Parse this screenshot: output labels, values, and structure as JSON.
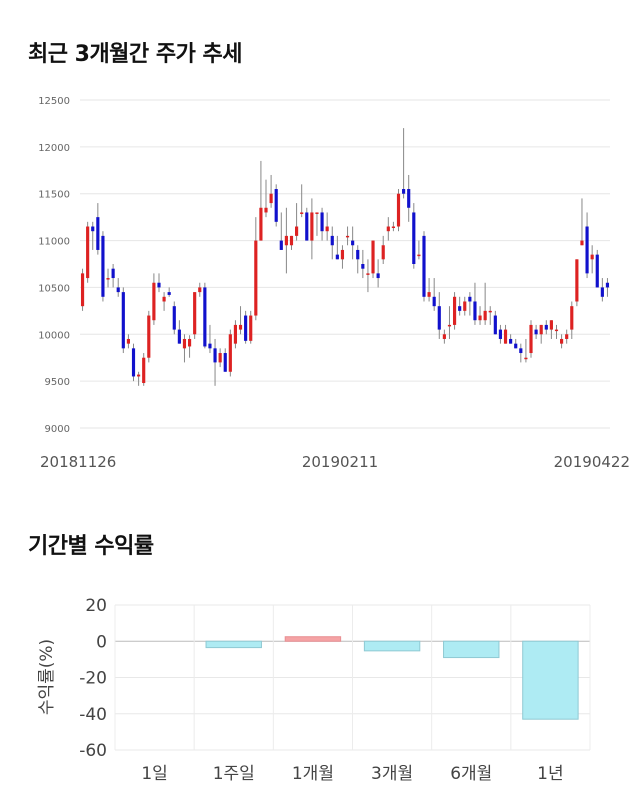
{
  "sections": {
    "price_title": "최근 3개월간 주가 추세",
    "returns_title": "기간별 수익률"
  },
  "chart_data": [
    {
      "type": "candlestick",
      "title": "최근 3개월간 주가 추세",
      "ylim": [
        9000,
        12500
      ],
      "yticks": [
        9000,
        9500,
        10000,
        10500,
        11000,
        11500,
        12000,
        12500
      ],
      "x_labels": [
        "20181126",
        "20190211",
        "20190422"
      ],
      "grid": true,
      "colors": {
        "up": "#dd2222",
        "down": "#1111cc",
        "wick": "#888888"
      },
      "candles": [
        [
          10300,
          10700,
          10250,
          10650
        ],
        [
          10600,
          11200,
          10550,
          11150
        ],
        [
          11150,
          11200,
          10900,
          11100
        ],
        [
          11250,
          11400,
          10850,
          10900
        ],
        [
          11050,
          11100,
          10350,
          10400
        ],
        [
          10600,
          10700,
          10500,
          10600
        ],
        [
          10700,
          10750,
          10500,
          10600
        ],
        [
          10500,
          10600,
          10400,
          10450
        ],
        [
          10450,
          10500,
          9800,
          9850
        ],
        [
          9900,
          10000,
          9850,
          9950
        ],
        [
          9850,
          9900,
          9500,
          9550
        ],
        [
          9550,
          9600,
          9450,
          9570
        ],
        [
          9480,
          9800,
          9450,
          9750
        ],
        [
          9750,
          10250,
          9700,
          10200
        ],
        [
          10150,
          10650,
          10100,
          10550
        ],
        [
          10550,
          10650,
          10450,
          10500
        ],
        [
          10350,
          10450,
          10250,
          10400
        ],
        [
          10450,
          10500,
          10400,
          10420
        ],
        [
          10300,
          10350,
          10000,
          10050
        ],
        [
          10050,
          10150,
          9900,
          9900
        ],
        [
          9850,
          10000,
          9700,
          9950
        ],
        [
          9870,
          9990,
          9750,
          9950
        ],
        [
          10000,
          10450,
          9950,
          10450
        ],
        [
          10450,
          10550,
          10400,
          10500
        ],
        [
          10500,
          10550,
          9850,
          9870
        ],
        [
          9900,
          10100,
          9800,
          9850
        ],
        [
          9850,
          9950,
          9450,
          9700
        ],
        [
          9700,
          9850,
          9650,
          9800
        ],
        [
          9800,
          9850,
          9600,
          9600
        ],
        [
          9600,
          10050,
          9550,
          10000
        ],
        [
          9900,
          10150,
          9850,
          10100
        ],
        [
          10050,
          10300,
          10000,
          10100
        ],
        [
          10200,
          10250,
          9900,
          9930
        ],
        [
          9930,
          10250,
          9900,
          10200
        ],
        [
          10200,
          11250,
          10150,
          11000
        ],
        [
          11000,
          11850,
          11000,
          11350
        ],
        [
          11300,
          11650,
          11250,
          11350
        ],
        [
          11400,
          11700,
          11350,
          11500
        ],
        [
          11550,
          11600,
          11150,
          11200
        ],
        [
          11000,
          11300,
          10900,
          10900
        ],
        [
          10950,
          11350,
          10650,
          11050
        ],
        [
          10950,
          11050,
          10900,
          11050
        ],
        [
          11050,
          11400,
          11000,
          11150
        ],
        [
          11300,
          11600,
          11250,
          11300
        ],
        [
          11300,
          11350,
          11000,
          11000
        ],
        [
          11000,
          11450,
          10800,
          11300
        ],
        [
          11300,
          11300,
          11050,
          11300
        ],
        [
          11300,
          11350,
          11000,
          11100
        ],
        [
          11100,
          11300,
          11000,
          11150
        ],
        [
          11050,
          11150,
          10800,
          10950
        ],
        [
          10850,
          11050,
          10800,
          10800
        ],
        [
          10800,
          10950,
          10700,
          10900
        ],
        [
          11050,
          11150,
          10950,
          11050
        ],
        [
          11000,
          11150,
          10800,
          10950
        ],
        [
          10900,
          10950,
          10650,
          10800
        ],
        [
          10750,
          10900,
          10600,
          10700
        ],
        [
          10650,
          10800,
          10450,
          10650
        ],
        [
          10650,
          11000,
          10600,
          11000
        ],
        [
          10650,
          10800,
          10500,
          10600
        ],
        [
          10800,
          11050,
          10750,
          10950
        ],
        [
          11100,
          11250,
          11000,
          11150
        ],
        [
          11150,
          11200,
          11100,
          11150
        ],
        [
          11150,
          11550,
          11100,
          11500
        ],
        [
          11550,
          12200,
          11450,
          11500
        ],
        [
          11550,
          11700,
          11200,
          11350
        ],
        [
          11300,
          11400,
          10700,
          10750
        ],
        [
          10850,
          11000,
          10800,
          10850
        ],
        [
          11050,
          11100,
          10350,
          10400
        ],
        [
          10400,
          10600,
          10350,
          10450
        ],
        [
          10400,
          10600,
          10250,
          10300
        ],
        [
          10300,
          10450,
          9950,
          10050
        ],
        [
          9950,
          10050,
          9900,
          10000
        ],
        [
          10100,
          10300,
          9950,
          10100
        ],
        [
          10100,
          10450,
          10050,
          10400
        ],
        [
          10300,
          10400,
          10200,
          10250
        ],
        [
          10250,
          10400,
          10200,
          10350
        ],
        [
          10400,
          10450,
          10200,
          10350
        ],
        [
          10350,
          10550,
          10100,
          10150
        ],
        [
          10150,
          10300,
          10100,
          10200
        ],
        [
          10150,
          10550,
          10100,
          10250
        ],
        [
          10250,
          10300,
          10100,
          10250
        ],
        [
          10200,
          10250,
          10000,
          10000
        ],
        [
          10050,
          10100,
          9900,
          9950
        ],
        [
          9900,
          10100,
          9900,
          10050
        ],
        [
          9950,
          10000,
          9900,
          9900
        ],
        [
          9900,
          9950,
          9850,
          9850
        ],
        [
          9850,
          9900,
          9700,
          9800
        ],
        [
          9750,
          9950,
          9700,
          9750
        ],
        [
          9800,
          10150,
          9750,
          10100
        ],
        [
          10050,
          10100,
          9950,
          10000
        ],
        [
          10000,
          10100,
          9900,
          10100
        ],
        [
          10100,
          10150,
          10000,
          10050
        ],
        [
          10050,
          10150,
          9950,
          10150
        ],
        [
          10050,
          10100,
          9950,
          10050
        ],
        [
          9900,
          10000,
          9850,
          9950
        ],
        [
          9950,
          10050,
          9900,
          10000
        ],
        [
          10050,
          10350,
          9950,
          10300
        ],
        [
          10350,
          10800,
          10300,
          10800
        ],
        [
          10950,
          11450,
          10950,
          11000
        ],
        [
          11150,
          11300,
          10600,
          10650
        ],
        [
          10800,
          10950,
          10650,
          10850
        ],
        [
          10850,
          10900,
          10500,
          10500
        ],
        [
          10500,
          10600,
          10350,
          10400
        ],
        [
          10550,
          10600,
          10400,
          10500
        ]
      ]
    },
    {
      "type": "bar",
      "title": "기간별 수익률",
      "ylabel": "수익률(%)",
      "categories": [
        "1일",
        "1주일",
        "1개월",
        "3개월",
        "6개월",
        "1년"
      ],
      "values": [
        0,
        -3.5,
        2.5,
        -5.3,
        -9.0,
        -43.0
      ],
      "ylim": [
        -60,
        20
      ],
      "yticks": [
        20,
        0,
        -20,
        -40,
        -60
      ],
      "grid": true,
      "colors": {
        "positive": "#f5a3a5",
        "negative": "#aeebf3",
        "positive_edge": "#e88f93",
        "negative_edge": "#8fc9d3"
      }
    }
  ]
}
